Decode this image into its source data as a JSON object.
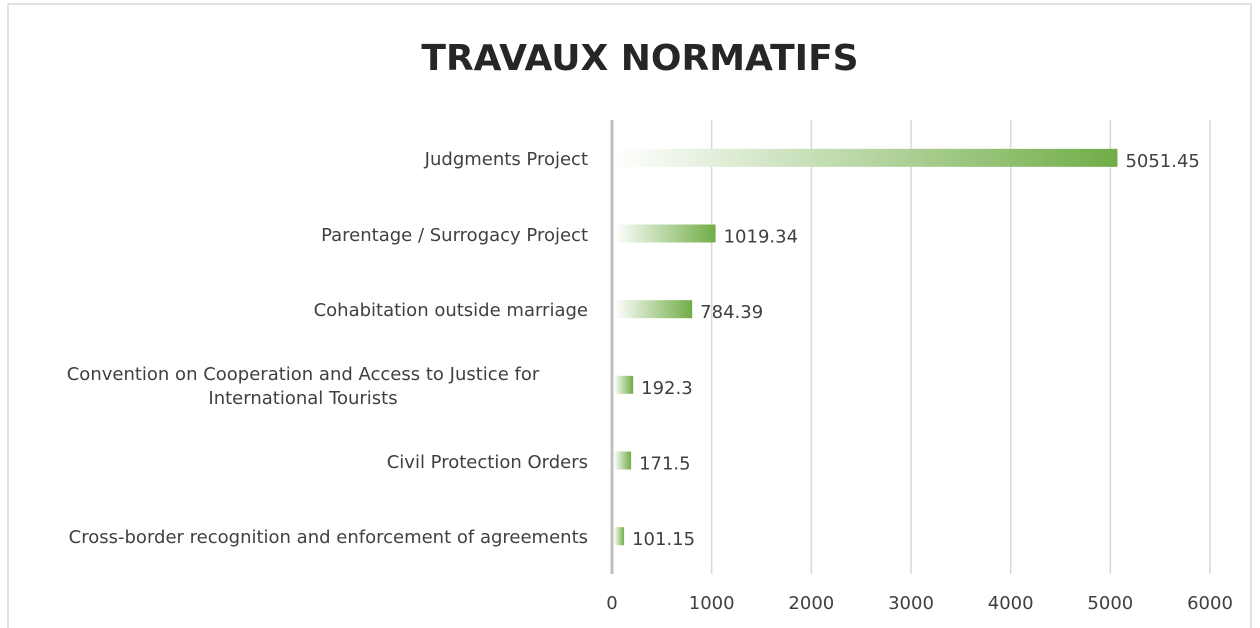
{
  "chart_data": {
    "type": "barh",
    "title": "TRAVAUX NORMATIFS",
    "categories": [
      "Judgments Project",
      "Parentage / Surrogacy Project",
      "Cohabitation outside marriage",
      "Convention on Cooperation and Access to Justice for International Tourists",
      "Civil Protection Orders",
      "Cross-border recognition and enforcement of agreements"
    ],
    "values": [
      5051.45,
      1019.34,
      784.39,
      192.3,
      171.5,
      101.15
    ],
    "color": "#70ad47",
    "xlim": [
      0,
      6000
    ],
    "xticks": [
      0,
      1000,
      2000,
      3000,
      4000,
      5000,
      6000
    ],
    "grid": true
  }
}
